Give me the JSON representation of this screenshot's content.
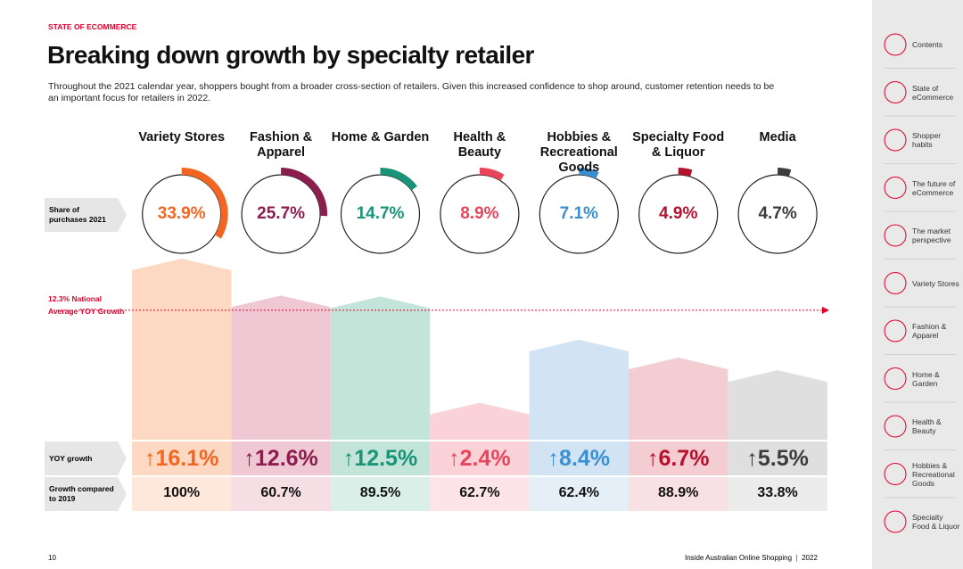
{
  "header": {
    "section": "STATE OF ECOMMERCE",
    "title": "Breaking down growth by specialty retailer",
    "intro": "Throughout the 2021 calendar year, shoppers bought from a broader cross-section of retailers. Given this increased confidence to shop around, customer retention needs to be an important focus for retailers in 2022."
  },
  "row_labels": {
    "share": "Share of purchases 2021",
    "yoy": "YOY growth",
    "growth": "Growth compared to 2019"
  },
  "national_average": {
    "value": 12.3,
    "label_1": "12.3% National",
    "label_2": "Average YOY Growth"
  },
  "retailers": [
    {
      "name": "Variety Stores",
      "share": 33.9,
      "share_label": "33.9%",
      "yoy": 16.1,
      "yoy_label": "↑16.1%",
      "growth": "100%",
      "color": "#f26522",
      "light": "#fdd9c4"
    },
    {
      "name": "Fashion & Apparel",
      "share": 25.7,
      "share_label": "25.7%",
      "yoy": 12.6,
      "yoy_label": "↑12.6%",
      "growth": "60.7%",
      "color": "#8b1e4f",
      "light": "#f0c8d4"
    },
    {
      "name": "Home & Garden",
      "share": 14.7,
      "share_label": "14.7%",
      "yoy": 12.5,
      "yoy_label": "↑12.5%",
      "growth": "89.5%",
      "color": "#1a9478",
      "light": "#c2e4d9"
    },
    {
      "name": "Health & Beauty",
      "share": 8.9,
      "share_label": "8.9%",
      "yoy": 2.4,
      "yoy_label": "↑2.4%",
      "growth": "62.7%",
      "color": "#e8455a",
      "light": "#fad2d8"
    },
    {
      "name": "Hobbies & Recreational Goods",
      "share": 7.1,
      "share_label": "7.1%",
      "yoy": 8.4,
      "yoy_label": "↑8.4%",
      "growth": "62.4%",
      "color": "#3a8fd1",
      "light": "#d2e4f3"
    },
    {
      "name": "Specialty Food & Liquor",
      "share": 4.9,
      "share_label": "4.9%",
      "yoy": 6.7,
      "yoy_label": "↑6.7%",
      "growth": "88.9%",
      "color": "#b3122e",
      "light": "#f4cdd2"
    },
    {
      "name": "Media",
      "share": 4.7,
      "share_label": "4.7%",
      "yoy": 5.5,
      "yoy_label": "↑5.5%",
      "growth": "33.8%",
      "color": "#3c3c3c",
      "light": "#dfdfdf"
    }
  ],
  "sidebar": [
    "Contents",
    "State of eCommerce",
    "Shopper habits",
    "The future of eCommerce",
    "The market perspective",
    "Variety Stores",
    "Fashion & Apparel",
    "Home & Garden",
    "Health & Beauty",
    "Hobbies & Recreational Goods",
    "Specialty Food & Liquor"
  ],
  "footer": {
    "page": "10",
    "publication": "Inside Australian Online Shopping",
    "year": "2022"
  }
}
